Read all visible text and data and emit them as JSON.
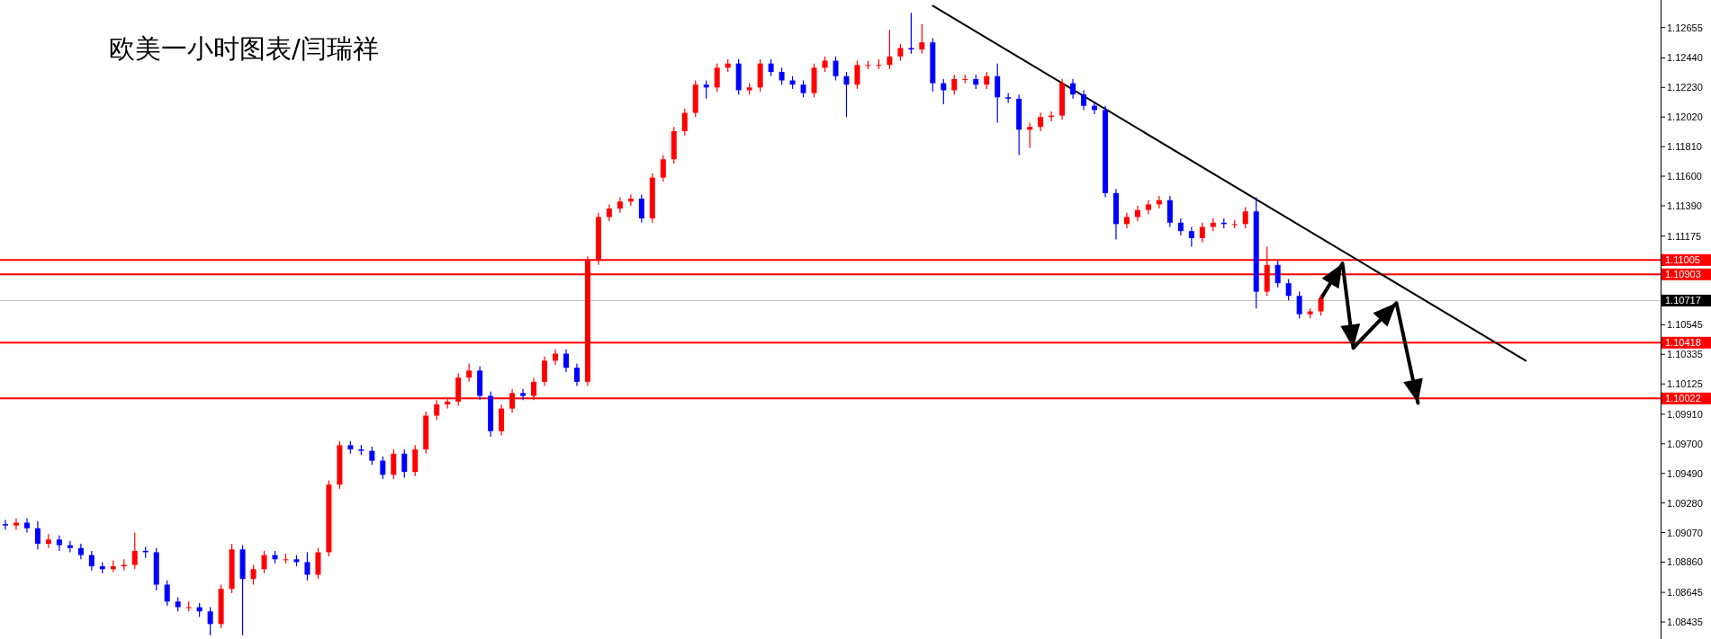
{
  "chart_data": {
    "type": "candlestick",
    "title": "欧美一小时图表/闫瑞祥",
    "categories": [
      null,
      null,
      null,
      null,
      null,
      null,
      null,
      null,
      null,
      null,
      null,
      null,
      null,
      null,
      null,
      null,
      null,
      null,
      null,
      null,
      null,
      null,
      null,
      null,
      null,
      null,
      null,
      null,
      null,
      null,
      null,
      null,
      null,
      null,
      null,
      null,
      null,
      null,
      null,
      null,
      null,
      null,
      null,
      null,
      null,
      null,
      null,
      null,
      null,
      null,
      null,
      null,
      null,
      null,
      null,
      null,
      null,
      null,
      null,
      null,
      null,
      null,
      null,
      null,
      null,
      null,
      null,
      null,
      null,
      null,
      null,
      null,
      null,
      null,
      null,
      null,
      null,
      null,
      null,
      null,
      null,
      null,
      null,
      null,
      null,
      null,
      null,
      null,
      null,
      null,
      null,
      null,
      null,
      null,
      null,
      null,
      null,
      null,
      null,
      null,
      null,
      null,
      null,
      null,
      null,
      null,
      null,
      null,
      null,
      null,
      null,
      null,
      null,
      null,
      null,
      null,
      null,
      null,
      null,
      null,
      null,
      null,
      null,
      null,
      null,
      null,
      null,
      null,
      null,
      null,
      null,
      null,
      null,
      null,
      null,
      null,
      null,
      null,
      null,
      null,
      null,
      null,
      null,
      null,
      null,
      null,
      null,
      null,
      null,
      null,
      null,
      null,
      null,
      null
    ],
    "ohlc": [
      [
        1.0913,
        1.0916,
        1.0909,
        1.0912
      ],
      [
        1.0912,
        1.0917,
        1.0909,
        1.0914
      ],
      [
        1.0914,
        1.0917,
        1.0907,
        1.091
      ],
      [
        1.091,
        1.0915,
        1.0895,
        1.0899
      ],
      [
        1.0899,
        1.0906,
        1.0896,
        1.0902
      ],
      [
        1.0902,
        1.0905,
        1.0894,
        1.0898
      ],
      [
        1.0898,
        1.0901,
        1.0893,
        1.0896
      ],
      [
        1.0896,
        1.0899,
        1.0888,
        1.0891
      ],
      [
        1.0891,
        1.0894,
        1.088,
        1.0883
      ],
      [
        1.0883,
        1.0886,
        1.0878,
        1.0881
      ],
      [
        1.0881,
        1.0887,
        1.0879,
        1.0883
      ],
      [
        1.0883,
        1.0888,
        1.088,
        1.0884
      ],
      [
        1.0884,
        1.0907,
        1.0881,
        1.0894
      ],
      [
        1.0894,
        1.0897,
        1.0889,
        1.0893
      ],
      [
        1.0893,
        1.0896,
        1.0866,
        1.087
      ],
      [
        1.087,
        1.0873,
        1.0855,
        1.0858
      ],
      [
        1.0858,
        1.0861,
        1.0851,
        1.0854
      ],
      [
        1.0854,
        1.0858,
        1.0851,
        1.0854
      ],
      [
        1.0854,
        1.0857,
        1.0847,
        1.0851
      ],
      [
        1.0851,
        1.0854,
        1.0834,
        1.0842
      ],
      [
        1.0842,
        1.087,
        1.0839,
        1.0867
      ],
      [
        1.0867,
        1.0899,
        1.0864,
        1.0895
      ],
      [
        1.0895,
        1.0898,
        1.0834,
        1.0874
      ],
      [
        1.0874,
        1.0884,
        1.087,
        1.0881
      ],
      [
        1.0881,
        1.0894,
        1.0878,
        1.0891
      ],
      [
        1.0891,
        1.0894,
        1.0885,
        1.0888
      ],
      [
        1.0888,
        1.0892,
        1.0885,
        1.0888
      ],
      [
        1.0888,
        1.0891,
        1.0883,
        1.0886
      ],
      [
        1.0886,
        1.0893,
        1.0873,
        1.0877
      ],
      [
        1.0877,
        1.0896,
        1.0874,
        1.0893
      ],
      [
        1.0893,
        1.0944,
        1.089,
        1.0941
      ],
      [
        1.0941,
        1.0972,
        1.0938,
        1.0969
      ],
      [
        1.0969,
        1.0972,
        1.0963,
        1.0966
      ],
      [
        1.0966,
        1.0969,
        1.0962,
        1.0965
      ],
      [
        1.0965,
        1.0968,
        1.0955,
        1.0958
      ],
      [
        1.0958,
        1.0961,
        1.0945,
        1.0948
      ],
      [
        1.0948,
        1.0966,
        1.0945,
        1.0963
      ],
      [
        1.0963,
        1.0966,
        1.0946,
        1.095
      ],
      [
        1.095,
        1.0969,
        1.0947,
        1.0966
      ],
      [
        1.0966,
        1.0993,
        1.0963,
        1.099
      ],
      [
        1.099,
        1.1001,
        1.0987,
        1.0998
      ],
      [
        1.0998,
        1.1003,
        1.0995,
        1.1
      ],
      [
        1.1,
        1.102,
        1.0997,
        1.1017
      ],
      [
        1.1017,
        1.1027,
        1.1014,
        1.1022
      ],
      [
        1.1022,
        1.1025,
        1.1001,
        1.1004
      ],
      [
        1.1004,
        1.1007,
        1.0975,
        1.0979
      ],
      [
        1.0979,
        1.0998,
        1.0976,
        1.0995
      ],
      [
        1.0995,
        1.1009,
        1.0992,
        1.1006
      ],
      [
        1.1006,
        1.1009,
        1.1001,
        1.1004
      ],
      [
        1.1004,
        1.1017,
        1.1001,
        1.1014
      ],
      [
        1.1014,
        1.1032,
        1.1011,
        1.1029
      ],
      [
        1.1029,
        1.1037,
        1.1026,
        1.1034
      ],
      [
        1.1034,
        1.1037,
        1.1021,
        1.1024
      ],
      [
        1.1024,
        1.1027,
        1.1011,
        1.1014
      ],
      [
        1.1014,
        1.1103,
        1.1011,
        1.11
      ],
      [
        1.11,
        1.1134,
        1.1097,
        1.1131
      ],
      [
        1.1131,
        1.114,
        1.1128,
        1.1137
      ],
      [
        1.1137,
        1.1145,
        1.1134,
        1.1142
      ],
      [
        1.1142,
        1.1147,
        1.1139,
        1.1144
      ],
      [
        1.1144,
        1.1147,
        1.1127,
        1.113
      ],
      [
        1.113,
        1.1162,
        1.1127,
        1.1159
      ],
      [
        1.1159,
        1.1175,
        1.1156,
        1.1172
      ],
      [
        1.1172,
        1.1195,
        1.1169,
        1.1192
      ],
      [
        1.1192,
        1.1208,
        1.1189,
        1.1205
      ],
      [
        1.1205,
        1.1228,
        1.1202,
        1.1225
      ],
      [
        1.1225,
        1.1228,
        1.1215,
        1.1223
      ],
      [
        1.1223,
        1.124,
        1.122,
        1.1237
      ],
      [
        1.1237,
        1.1243,
        1.1234,
        1.124
      ],
      [
        1.124,
        1.1243,
        1.1218,
        1.1221
      ],
      [
        1.1221,
        1.1226,
        1.1218,
        1.1223
      ],
      [
        1.1223,
        1.1243,
        1.122,
        1.124
      ],
      [
        1.124,
        1.1243,
        1.1231,
        1.1234
      ],
      [
        1.1234,
        1.1237,
        1.1225,
        1.1228
      ],
      [
        1.1228,
        1.1231,
        1.1222,
        1.1225
      ],
      [
        1.1225,
        1.1228,
        1.1216,
        1.1219
      ],
      [
        1.1219,
        1.124,
        1.1216,
        1.1237
      ],
      [
        1.1237,
        1.1245,
        1.1234,
        1.1242
      ],
      [
        1.1242,
        1.1245,
        1.1228,
        1.1231
      ],
      [
        1.1231,
        1.1234,
        1.1202,
        1.1225
      ],
      [
        1.1225,
        1.1242,
        1.1222,
        1.1239
      ],
      [
        1.1239,
        1.1242,
        1.1236,
        1.1239
      ],
      [
        1.1239,
        1.1243,
        1.1236,
        1.1239
      ],
      [
        1.1239,
        1.1264,
        1.1236,
        1.1245
      ],
      [
        1.1245,
        1.1254,
        1.1242,
        1.1251
      ],
      [
        1.1251,
        1.1276,
        1.1247,
        1.125
      ],
      [
        1.125,
        1.1268,
        1.1247,
        1.1255
      ],
      [
        1.1255,
        1.1258,
        1.122,
        1.1226
      ],
      [
        1.1226,
        1.1229,
        1.1211,
        1.1221
      ],
      [
        1.1221,
        1.1232,
        1.1218,
        1.1229
      ],
      [
        1.1229,
        1.1232,
        1.1226,
        1.1229
      ],
      [
        1.1229,
        1.1232,
        1.1222,
        1.1225
      ],
      [
        1.1225,
        1.1234,
        1.1222,
        1.1231
      ],
      [
        1.1231,
        1.124,
        1.1198,
        1.1216
      ],
      [
        1.1216,
        1.1219,
        1.1212,
        1.1215
      ],
      [
        1.1215,
        1.1218,
        1.1175,
        1.1193
      ],
      [
        1.1193,
        1.1198,
        1.118,
        1.1195
      ],
      [
        1.1195,
        1.1205,
        1.1192,
        1.1202
      ],
      [
        1.1202,
        1.1206,
        1.1199,
        1.1203
      ],
      [
        1.1203,
        1.1229,
        1.12,
        1.1226
      ],
      [
        1.1226,
        1.1229,
        1.1215,
        1.1218
      ],
      [
        1.1218,
        1.1221,
        1.1207,
        1.121
      ],
      [
        1.121,
        1.1213,
        1.1204,
        1.1207
      ],
      [
        1.1207,
        1.121,
        1.1145,
        1.1148
      ],
      [
        1.1148,
        1.1151,
        1.1115,
        1.1126
      ],
      [
        1.1126,
        1.1134,
        1.1123,
        1.1131
      ],
      [
        1.1131,
        1.1139,
        1.1128,
        1.1136
      ],
      [
        1.1136,
        1.1143,
        1.1133,
        1.114
      ],
      [
        1.114,
        1.1146,
        1.1137,
        1.1143
      ],
      [
        1.1143,
        1.1146,
        1.1124,
        1.1127
      ],
      [
        1.1127,
        1.113,
        1.1118,
        1.1121
      ],
      [
        1.1121,
        1.1124,
        1.111,
        1.1116
      ],
      [
        1.1116,
        1.1127,
        1.1113,
        1.1124
      ],
      [
        1.1124,
        1.113,
        1.1121,
        1.1127
      ],
      [
        1.1127,
        1.113,
        1.1123,
        1.1126
      ],
      [
        1.1126,
        1.1129,
        1.1123,
        1.1126
      ],
      [
        1.1126,
        1.1138,
        1.1123,
        1.1135
      ],
      [
        1.1135,
        1.1145,
        1.1066,
        1.1078
      ],
      [
        1.1078,
        1.111,
        1.1075,
        1.1097
      ],
      [
        1.1097,
        1.11,
        1.1081,
        1.1084
      ],
      [
        1.1084,
        1.1087,
        1.1072,
        1.1075
      ],
      [
        1.1075,
        1.1078,
        1.1059,
        1.1062
      ],
      [
        1.1062,
        1.1066,
        1.1059,
        1.1064
      ],
      [
        1.1064,
        1.1076,
        1.1061,
        1.1073
      ],
      null,
      null,
      null,
      null,
      null,
      null,
      null,
      null,
      null,
      null,
      null,
      null,
      null,
      null,
      null,
      null,
      null,
      null,
      null,
      null,
      null,
      null,
      null,
      null,
      null,
      null,
      null,
      null,
      null,
      null,
      null
    ],
    "colors": [
      "#0000ff",
      "#ff0000",
      "#0000ff",
      "#0000ff",
      "#ff0000",
      "#0000ff",
      "#0000ff",
      "#0000ff",
      "#0000ff",
      "#0000ff",
      "#ff0000",
      "#ff0000",
      "#ff0000",
      "#0000ff",
      "#0000ff",
      "#0000ff",
      "#0000ff",
      "#ff0000",
      "#0000ff",
      "#0000ff",
      "#ff0000",
      "#ff0000",
      "#0000ff",
      "#ff0000",
      "#ff0000",
      "#0000ff",
      "#ff0000",
      "#0000ff",
      "#0000ff",
      "#ff0000",
      "#ff0000",
      "#ff0000",
      "#0000ff",
      "#0000ff",
      "#0000ff",
      "#0000ff",
      "#ff0000",
      "#0000ff",
      "#ff0000",
      "#ff0000",
      "#ff0000",
      "#ff0000",
      "#ff0000",
      "#ff0000",
      "#0000ff",
      "#0000ff",
      "#ff0000",
      "#ff0000",
      "#0000ff",
      "#ff0000",
      "#ff0000",
      "#ff0000",
      "#0000ff",
      "#0000ff",
      "#ff0000",
      "#ff0000",
      "#ff0000",
      "#ff0000",
      "#ff0000",
      "#0000ff",
      "#ff0000",
      "#ff0000",
      "#ff0000",
      "#ff0000",
      "#ff0000",
      "#0000ff",
      "#ff0000",
      "#ff0000",
      "#0000ff",
      "#ff0000",
      "#ff0000",
      "#0000ff",
      "#0000ff",
      "#0000ff",
      "#0000ff",
      "#ff0000",
      "#ff0000",
      "#0000ff",
      "#0000ff",
      "#ff0000",
      "#ff0000",
      "#ff0000",
      "#ff0000",
      "#ff0000",
      "#0000ff",
      "#ff0000",
      "#0000ff",
      "#0000ff",
      "#ff0000",
      "#ff0000",
      "#0000ff",
      "#ff0000",
      "#0000ff",
      "#0000ff",
      "#0000ff",
      "#ff0000",
      "#ff0000",
      "#ff0000",
      "#ff0000",
      "#0000ff",
      "#0000ff",
      "#0000ff",
      "#0000ff",
      "#0000ff",
      "#ff0000",
      "#ff0000",
      "#ff0000",
      "#ff0000",
      "#0000ff",
      "#0000ff",
      "#0000ff",
      "#ff0000",
      "#ff0000",
      "#0000ff",
      "#ff0000",
      "#ff0000",
      "#0000ff",
      "#ff0000",
      "#0000ff",
      "#0000ff",
      "#0000ff",
      "#ff0000",
      "#ff0000",
      null,
      null,
      null,
      null,
      null,
      null,
      null,
      null,
      null,
      null,
      null,
      null,
      null,
      null,
      null,
      null,
      null,
      null,
      null,
      null,
      null,
      null,
      null,
      null,
      null,
      null,
      null,
      null,
      null,
      null,
      null
    ],
    "ylim": [
      1.08314,
      1.12851
    ],
    "yticks": [
      1.12655,
      {
        "value": 1.1244,
        "label": "1.12440"
      },
      {
        "value": 1.1223,
        "label": "1.12230"
      },
      {
        "value": 1.1202,
        "label": "1.12020"
      },
      {
        "value": 1.1181,
        "label": "1.11810"
      },
      {
        "value": 1.116,
        "label": "1.11600"
      },
      {
        "value": 1.1139,
        "label": "1.11390"
      },
      1.11175,
      {
        "value": 1.10965,
        "label": null
      },
      {
        "value": 1.10755,
        "label": null
      },
      1.10545,
      1.10335,
      1.10125,
      {
        "value": 1.0991,
        "label": "1.09910"
      },
      {
        "value": 1.097,
        "label": "1.09700"
      },
      {
        "value": 1.0949,
        "label": "1.09490"
      },
      {
        "value": 1.0928,
        "label": "1.09280"
      },
      {
        "value": 1.0907,
        "label": "1.09070"
      },
      {
        "value": 1.0886,
        "label": "1.08860"
      },
      1.08645,
      1.08435
    ],
    "ref_lines": [
      {
        "axis": "y",
        "value": 1.11005,
        "label": "1.11005",
        "color": "#ff0000"
      },
      {
        "axis": "y",
        "value": 1.10903,
        "label": "1.10903",
        "color": "#ff0000"
      },
      {
        "axis": "y",
        "value": 1.10717,
        "label": "1.10717",
        "color": "#c0c0c0"
      },
      {
        "axis": "y",
        "value": 1.10418,
        "label": "1.10418",
        "color": "#ff0000"
      },
      {
        "axis": "y",
        "value": 1.10022,
        "label": "1.10022",
        "color": "#ff0000"
      }
    ],
    "series": [
      {
        "type": "line",
        "color": "#000000",
        "values": [
          null,
          null,
          null,
          null,
          null,
          null,
          null,
          null,
          null,
          null,
          null,
          null,
          null,
          null,
          null,
          null,
          null,
          null,
          null,
          null,
          null,
          null,
          null,
          null,
          null,
          null,
          null,
          null,
          null,
          null,
          null,
          null,
          null,
          null,
          null,
          null,
          null,
          null,
          null,
          null,
          null,
          null,
          null,
          null,
          null,
          null,
          null,
          null,
          null,
          null,
          null,
          null,
          null,
          null,
          null,
          null,
          null,
          null,
          null,
          null,
          null,
          null,
          null,
          null,
          null,
          null,
          null,
          null,
          null,
          null,
          null,
          null,
          null,
          null,
          null,
          null,
          null,
          null,
          null,
          null,
          null,
          null,
          null,
          null,
          null,
          null,
          1.1281,
          null,
          null,
          null,
          null,
          null,
          null,
          null,
          null,
          null,
          null,
          null,
          null,
          null,
          null,
          null,
          null,
          null,
          null,
          null,
          null,
          null,
          null,
          null,
          null,
          null,
          null,
          null,
          null,
          null,
          null,
          null,
          null,
          null,
          null,
          null,
          null,
          null,
          null,
          null,
          null,
          null,
          null,
          null,
          null,
          null,
          null,
          null,
          null,
          null,
          null,
          null,
          null,
          null,
          null,
          1.1029,
          null,
          null,
          null,
          null,
          null,
          null,
          null,
          null,
          null,
          null,
          null,
          null
        ]
      },
      {
        "type": "line",
        "color": "#000000",
        "values": [
          null,
          null,
          null,
          null,
          null,
          null,
          null,
          null,
          null,
          null,
          null,
          null,
          null,
          null,
          null,
          null,
          null,
          null,
          null,
          null,
          null,
          null,
          null,
          null,
          null,
          null,
          null,
          null,
          null,
          null,
          null,
          null,
          null,
          null,
          null,
          null,
          null,
          null,
          null,
          null,
          null,
          null,
          null,
          null,
          null,
          null,
          null,
          null,
          null,
          null,
          null,
          null,
          null,
          null,
          null,
          null,
          null,
          null,
          null,
          null,
          null,
          null,
          null,
          null,
          null,
          null,
          null,
          null,
          null,
          null,
          null,
          null,
          null,
          null,
          null,
          null,
          null,
          null,
          null,
          null,
          null,
          null,
          null,
          null,
          null,
          null,
          null,
          null,
          null,
          null,
          null,
          null,
          null,
          null,
          null,
          null,
          null,
          null,
          null,
          null,
          null,
          null,
          null,
          null,
          null,
          null,
          null,
          null,
          null,
          null,
          null,
          null,
          null,
          null,
          null,
          null,
          null,
          null,
          null,
          null,
          null,
          null,
          1.1073,
          null,
          1.1098,
          1.1038,
          null,
          null,
          null,
          1.107,
          null,
          1.0999,
          null,
          null,
          null,
          null,
          null,
          null,
          null,
          null,
          null,
          null,
          null,
          null,
          null,
          null,
          null,
          null,
          null,
          null,
          null,
          null,
          null,
          null
        ]
      }
    ]
  }
}
